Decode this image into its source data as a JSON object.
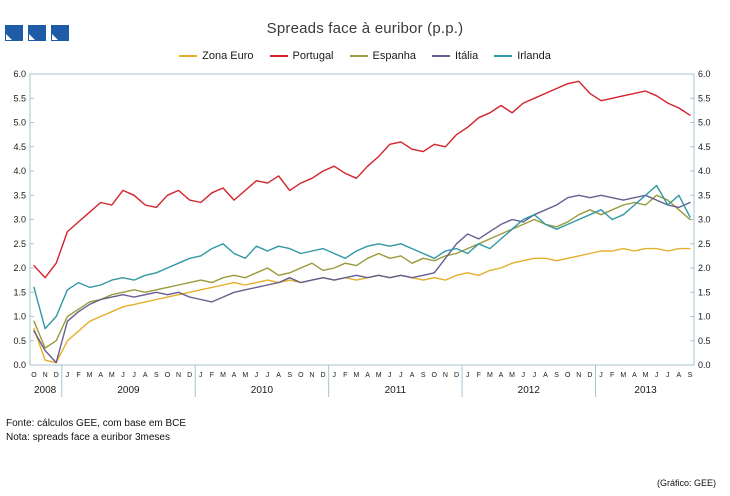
{
  "chart_data": {
    "type": "line",
    "title": "Spreads face à euribor (p.p.)",
    "ylim": [
      0,
      6
    ],
    "ytick_step": 0.5,
    "grid": false,
    "legend_position": "top",
    "axis_color": "#a9c4d2",
    "x_months": [
      "O",
      "N",
      "D",
      "J",
      "F",
      "M",
      "A",
      "M",
      "J",
      "J",
      "A",
      "S",
      "O",
      "N",
      "D",
      "J",
      "F",
      "M",
      "A",
      "M",
      "J",
      "J",
      "A",
      "S",
      "O",
      "N",
      "D",
      "J",
      "F",
      "M",
      "A",
      "M",
      "J",
      "J",
      "A",
      "S",
      "O",
      "N",
      "D",
      "J",
      "F",
      "M",
      "A",
      "M",
      "J",
      "J",
      "A",
      "S",
      "O",
      "N",
      "D",
      "J",
      "F",
      "M",
      "A",
      "M",
      "J",
      "J",
      "A",
      "S"
    ],
    "year_groups": [
      {
        "label": "2008",
        "start": 0,
        "end": 2
      },
      {
        "label": "2009",
        "start": 3,
        "end": 14
      },
      {
        "label": "2010",
        "start": 15,
        "end": 26
      },
      {
        "label": "2011",
        "start": 27,
        "end": 38
      },
      {
        "label": "2012",
        "start": 39,
        "end": 50
      },
      {
        "label": "2013",
        "start": 51,
        "end": 59
      }
    ],
    "series": [
      {
        "name": "Zona Euro",
        "color": "#e4af2a",
        "values": [
          0.75,
          0.1,
          0.05,
          0.5,
          0.7,
          0.9,
          1.0,
          1.1,
          1.2,
          1.25,
          1.3,
          1.35,
          1.4,
          1.45,
          1.5,
          1.55,
          1.6,
          1.65,
          1.7,
          1.65,
          1.7,
          1.75,
          1.7,
          1.75,
          1.7,
          1.75,
          1.8,
          1.75,
          1.8,
          1.75,
          1.8,
          1.85,
          1.8,
          1.85,
          1.8,
          1.75,
          1.8,
          1.75,
          1.85,
          1.9,
          1.85,
          1.95,
          2.0,
          2.1,
          2.15,
          2.2,
          2.2,
          2.15,
          2.2,
          2.25,
          2.3,
          2.35,
          2.35,
          2.4,
          2.35,
          2.4,
          2.4,
          2.35,
          2.4,
          2.4
        ]
      },
      {
        "name": "Portugal",
        "color": "#d2232a",
        "values": [
          2.05,
          1.8,
          2.1,
          2.75,
          2.95,
          3.15,
          3.35,
          3.3,
          3.6,
          3.5,
          3.3,
          3.25,
          3.5,
          3.6,
          3.4,
          3.35,
          3.55,
          3.65,
          3.4,
          3.6,
          3.8,
          3.75,
          3.9,
          3.6,
          3.75,
          3.85,
          4.0,
          4.1,
          3.95,
          3.85,
          4.1,
          4.3,
          4.55,
          4.6,
          4.45,
          4.4,
          4.55,
          4.5,
          4.75,
          4.9,
          5.1,
          5.2,
          5.35,
          5.2,
          5.4,
          5.5,
          5.6,
          5.7,
          5.8,
          5.85,
          5.6,
          5.45,
          5.5,
          5.55,
          5.6,
          5.65,
          5.55,
          5.4,
          5.3,
          5.15
        ]
      },
      {
        "name": "Espanha",
        "color": "#9a9b3c",
        "values": [
          0.9,
          0.35,
          0.5,
          1.0,
          1.15,
          1.3,
          1.35,
          1.45,
          1.5,
          1.55,
          1.5,
          1.55,
          1.6,
          1.65,
          1.7,
          1.75,
          1.7,
          1.8,
          1.85,
          1.8,
          1.9,
          2.0,
          1.85,
          1.9,
          2.0,
          2.1,
          1.95,
          2.0,
          2.1,
          2.05,
          2.2,
          2.3,
          2.2,
          2.25,
          2.1,
          2.2,
          2.15,
          2.25,
          2.3,
          2.4,
          2.5,
          2.6,
          2.7,
          2.8,
          2.9,
          3.0,
          2.9,
          2.85,
          2.95,
          3.1,
          3.2,
          3.1,
          3.2,
          3.3,
          3.35,
          3.3,
          3.5,
          3.4,
          3.2,
          3.0
        ]
      },
      {
        "name": "Itália",
        "color": "#665e8f",
        "values": [
          0.7,
          0.3,
          0.05,
          0.9,
          1.1,
          1.25,
          1.35,
          1.4,
          1.45,
          1.4,
          1.45,
          1.5,
          1.45,
          1.5,
          1.4,
          1.35,
          1.3,
          1.4,
          1.5,
          1.55,
          1.6,
          1.65,
          1.7,
          1.8,
          1.7,
          1.75,
          1.8,
          1.75,
          1.8,
          1.85,
          1.8,
          1.85,
          1.8,
          1.85,
          1.8,
          1.85,
          1.9,
          2.2,
          2.5,
          2.7,
          2.6,
          2.75,
          2.9,
          3.0,
          2.95,
          3.1,
          3.2,
          3.3,
          3.45,
          3.5,
          3.45,
          3.5,
          3.45,
          3.4,
          3.45,
          3.5,
          3.4,
          3.3,
          3.25,
          3.35
        ]
      },
      {
        "name": "Irlanda",
        "color": "#3198a5",
        "values": [
          1.6,
          0.75,
          1.0,
          1.55,
          1.7,
          1.6,
          1.65,
          1.75,
          1.8,
          1.75,
          1.85,
          1.9,
          2.0,
          2.1,
          2.2,
          2.25,
          2.4,
          2.5,
          2.3,
          2.2,
          2.45,
          2.35,
          2.45,
          2.4,
          2.3,
          2.35,
          2.4,
          2.3,
          2.2,
          2.35,
          2.45,
          2.5,
          2.45,
          2.5,
          2.4,
          2.3,
          2.2,
          2.35,
          2.4,
          2.3,
          2.5,
          2.4,
          2.6,
          2.8,
          3.0,
          3.1,
          2.9,
          2.8,
          2.9,
          3.0,
          3.1,
          3.2,
          3.0,
          3.1,
          3.3,
          3.5,
          3.7,
          3.3,
          3.5,
          3.05
        ]
      }
    ]
  },
  "footer": {
    "fonte": "Fonte: cálculos GEE, com base em BCE",
    "nota": "Nota: spreads face a euribor 3meses",
    "credit": "(Gráfico: GEE)"
  }
}
